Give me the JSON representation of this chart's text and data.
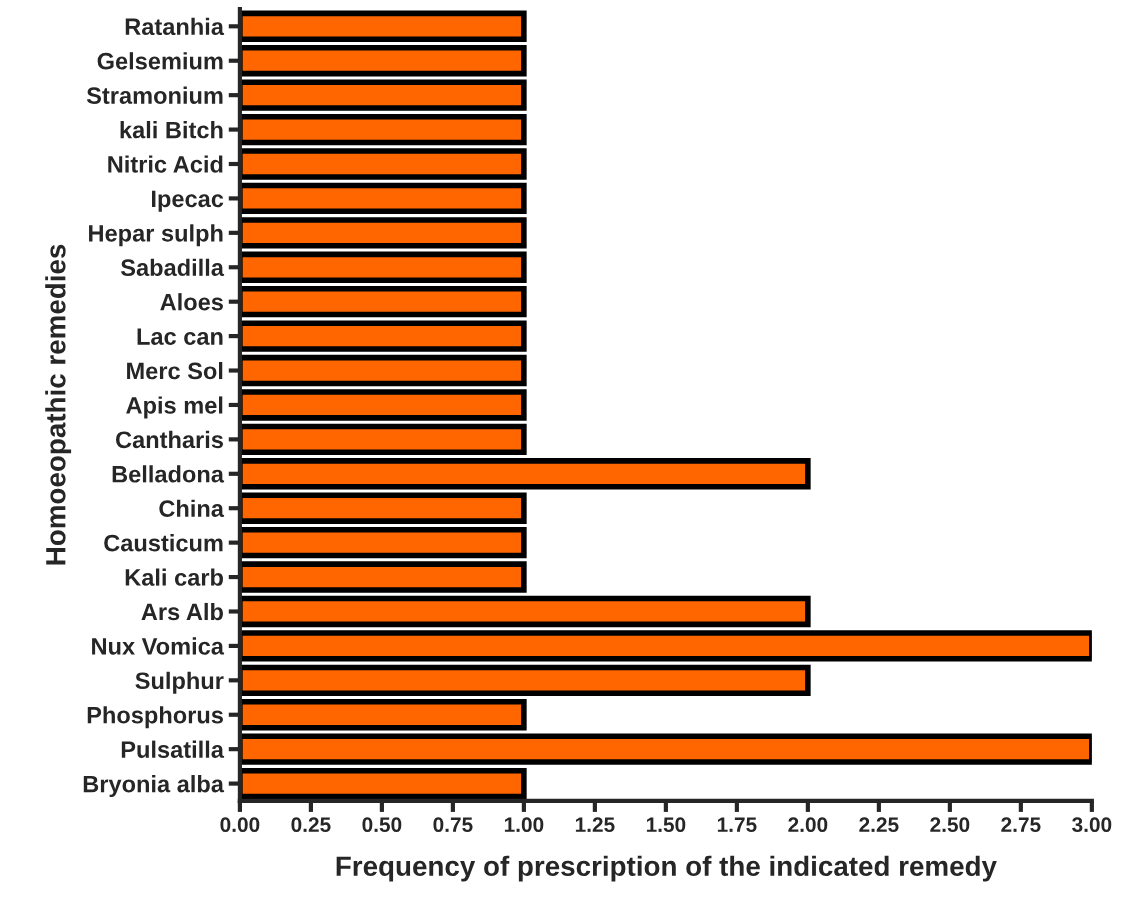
{
  "chart_data": {
    "type": "bar",
    "orientation": "horizontal",
    "xlabel": "Frequency of prescription of the indicated remedy",
    "ylabel": "Homoeopathic remedies",
    "categories": [
      "Ratanhia",
      "Gelsemium",
      "Stramonium",
      "kali Bitch",
      "Nitric Acid",
      "Ipecac",
      "Hepar sulph",
      "Sabadilla",
      "Aloes",
      "Lac can",
      "Merc Sol",
      "Apis mel",
      "Cantharis",
      "Belladona",
      "China",
      "Causticum",
      "Kali carb",
      "Ars Alb",
      "Nux Vomica",
      "Sulphur",
      "Phosphorus",
      "Pulsatilla",
      "Bryonia alba"
    ],
    "values": [
      1,
      1,
      1,
      1,
      1,
      1,
      1,
      1,
      1,
      1,
      1,
      1,
      1,
      2,
      1,
      1,
      1,
      2,
      3,
      2,
      1,
      3,
      1
    ],
    "color": "#ff6600",
    "xlim": [
      0,
      3
    ],
    "xticks": [
      {
        "value": 0,
        "label": "0.00"
      },
      {
        "value": 0.25,
        "label": "0.25"
      },
      {
        "value": 0.5,
        "label": "0.50"
      },
      {
        "value": 0.75,
        "label": "0.75"
      },
      {
        "value": 1,
        "label": "1.00"
      },
      {
        "value": 1.25,
        "label": "1.25"
      },
      {
        "value": 1.5,
        "label": "1.50"
      },
      {
        "value": 1.75,
        "label": "1.75"
      },
      {
        "value": 2,
        "label": "2.00"
      },
      {
        "value": 2.25,
        "label": "2.25"
      },
      {
        "value": 2.5,
        "label": "2.50"
      },
      {
        "value": 2.75,
        "label": "2.75"
      },
      {
        "value": 3,
        "label": "3.00"
      }
    ],
    "grid": false
  }
}
